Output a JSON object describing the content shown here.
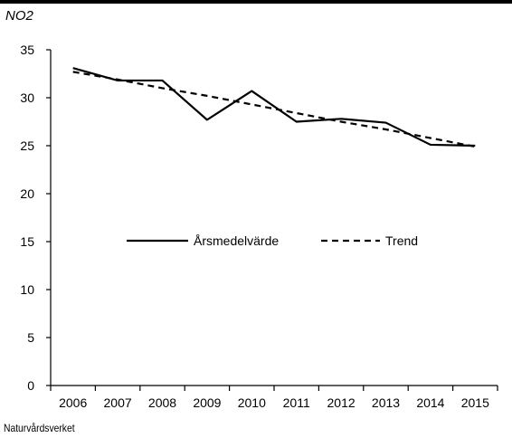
{
  "header": {
    "unit_label": "NO2"
  },
  "footer": {
    "source": "Naturvårdsverket"
  },
  "chart_data": {
    "type": "line",
    "x": [
      2006,
      2007,
      2008,
      2009,
      2010,
      2011,
      2012,
      2013,
      2014,
      2015
    ],
    "categories": [
      "2006",
      "2007",
      "2008",
      "2009",
      "2010",
      "2011",
      "2012",
      "2013",
      "2014",
      "2015"
    ],
    "series": [
      {
        "name": "Årsmedelvärde",
        "style": "solid",
        "color": "#000000",
        "values": [
          33.1,
          31.8,
          31.8,
          27.7,
          30.7,
          27.5,
          27.8,
          27.4,
          25.1,
          25.0
        ]
      },
      {
        "name": "Trend",
        "style": "dashed",
        "color": "#000000",
        "values": [
          32.7,
          31.9,
          31.0,
          30.2,
          29.3,
          28.4,
          27.5,
          26.7,
          25.8,
          24.9
        ]
      }
    ],
    "ylim": [
      0,
      35
    ],
    "yticks": [
      "0",
      "5",
      "10",
      "15",
      "20",
      "25",
      "30",
      "35"
    ],
    "title": "",
    "xlabel": "",
    "ylabel": "NO2",
    "grid": false,
    "legend": "center"
  }
}
